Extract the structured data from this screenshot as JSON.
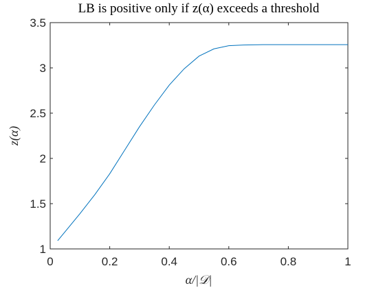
{
  "chart_data": {
    "type": "line",
    "title": "LB is positive only if z(α) exceeds a threshold",
    "xlabel": "α/|𝒟|",
    "ylabel": "z(α)",
    "xlim": [
      0,
      1
    ],
    "ylim": [
      1,
      3.5
    ],
    "xticks": [
      0,
      0.2,
      0.4,
      0.6,
      0.8,
      1
    ],
    "yticks": [
      1,
      1.5,
      2,
      2.5,
      3,
      3.5
    ],
    "xtick_labels": [
      "0",
      "0.2",
      "0.4",
      "0.6",
      "0.8",
      "1"
    ],
    "ytick_labels": [
      "1",
      "1.5",
      "2",
      "2.5",
      "3",
      "3.5"
    ],
    "grid": false,
    "line_color": "#0072BD",
    "series": [
      {
        "x": [
          0.025,
          0.05,
          0.1,
          0.15,
          0.2,
          0.25,
          0.3,
          0.35,
          0.4,
          0.45,
          0.5,
          0.55,
          0.6,
          0.65,
          0.7,
          0.75,
          0.8,
          0.9,
          1.0
        ],
        "y": [
          1.09,
          1.19,
          1.39,
          1.6,
          1.83,
          2.09,
          2.35,
          2.59,
          2.81,
          2.99,
          3.13,
          3.21,
          3.245,
          3.253,
          3.256,
          3.257,
          3.257,
          3.257,
          3.257
        ]
      }
    ]
  }
}
